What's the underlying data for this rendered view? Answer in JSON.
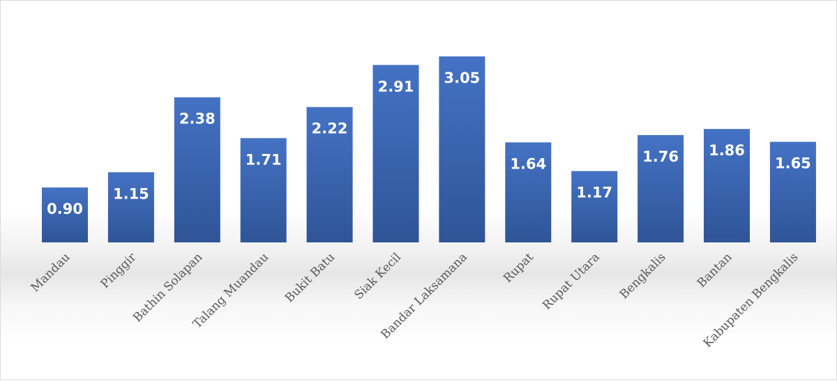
{
  "chart_data": {
    "type": "bar",
    "title": "",
    "xlabel": "",
    "ylabel": "",
    "categories": [
      "Mandau",
      "Pinggir",
      "Bathin Solapan",
      "Talang Muandau",
      "Bukit Batu",
      "Siak Kecil",
      "Bandar Laksamana",
      "Rupat",
      "Rupat Utara",
      "Bengkalis",
      "Bantan",
      "Kabupaten Bengkalis"
    ],
    "values": [
      0.9,
      1.15,
      2.38,
      1.71,
      2.22,
      2.91,
      3.05,
      1.64,
      1.17,
      1.76,
      1.86,
      1.65
    ],
    "value_labels": [
      "0.90",
      "1.15",
      "2.38",
      "1.71",
      "2.22",
      "2.91",
      "3.05",
      "1.64",
      "1.17",
      "1.76",
      "1.86",
      "1.65"
    ],
    "ylim": [
      0,
      3.05
    ],
    "grid": false,
    "legend": "none",
    "bar_color_top": "#4472c4",
    "bar_color_bottom": "#2f5597",
    "label_color": "#595959"
  }
}
